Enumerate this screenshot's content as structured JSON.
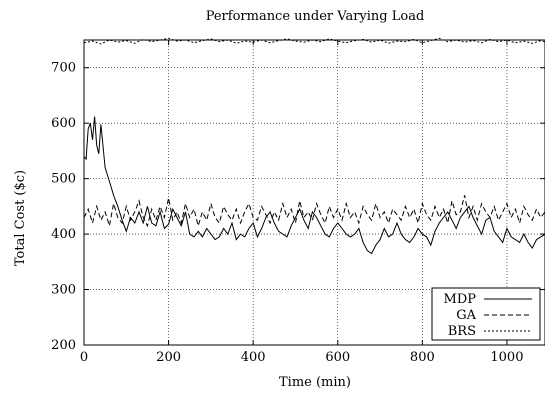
{
  "chart_data": {
    "type": "line",
    "title": "Performance under Varying Load",
    "xlabel": "Time (min)",
    "ylabel": "Total Cost ($c)",
    "xlim": [
      0,
      1090
    ],
    "ylim": [
      200,
      750
    ],
    "xticks": [
      0,
      200,
      400,
      600,
      800,
      1000
    ],
    "yticks": [
      200,
      300,
      400,
      500,
      600,
      700
    ],
    "grid": true,
    "legend_position": "bottom-right",
    "series": [
      {
        "name": "MDP",
        "style": "solid",
        "x": [
          0,
          5,
          10,
          15,
          20,
          25,
          30,
          35,
          40,
          50,
          60,
          70,
          80,
          90,
          100,
          110,
          120,
          130,
          140,
          150,
          160,
          170,
          180,
          190,
          200,
          210,
          220,
          230,
          240,
          250,
          260,
          270,
          280,
          290,
          300,
          310,
          320,
          330,
          340,
          350,
          360,
          370,
          380,
          390,
          400,
          410,
          420,
          430,
          440,
          450,
          460,
          470,
          480,
          490,
          500,
          510,
          520,
          530,
          540,
          550,
          560,
          570,
          580,
          590,
          600,
          610,
          620,
          630,
          640,
          650,
          660,
          670,
          680,
          690,
          700,
          710,
          720,
          730,
          740,
          750,
          760,
          770,
          780,
          790,
          800,
          810,
          820,
          830,
          840,
          850,
          860,
          870,
          880,
          890,
          900,
          910,
          920,
          930,
          940,
          950,
          960,
          970,
          980,
          990,
          1000,
          1010,
          1020,
          1030,
          1040,
          1050,
          1060,
          1070,
          1080,
          1090
        ],
        "y": [
          540,
          535,
          590,
          600,
          570,
          612,
          560,
          545,
          598,
          520,
          495,
          470,
          450,
          425,
          405,
          430,
          420,
          440,
          420,
          450,
          420,
          415,
          440,
          410,
          418,
          445,
          430,
          415,
          440,
          400,
          395,
          405,
          395,
          410,
          400,
          390,
          395,
          410,
          400,
          420,
          390,
          400,
          395,
          410,
          420,
          395,
          410,
          430,
          440,
          420,
          405,
          400,
          395,
          415,
          430,
          445,
          425,
          410,
          440,
          430,
          415,
          400,
          395,
          410,
          420,
          410,
          400,
          395,
          400,
          410,
          385,
          370,
          365,
          380,
          390,
          410,
          395,
          400,
          420,
          400,
          390,
          385,
          395,
          410,
          400,
          395,
          380,
          405,
          420,
          430,
          440,
          425,
          410,
          430,
          440,
          450,
          430,
          415,
          400,
          425,
          430,
          405,
          395,
          385,
          410,
          395,
          390,
          385,
          400,
          385,
          375,
          390,
          395,
          400
        ]
      },
      {
        "name": "GA",
        "style": "dashed",
        "x": [
          0,
          10,
          20,
          30,
          40,
          50,
          60,
          70,
          80,
          90,
          100,
          110,
          120,
          130,
          140,
          150,
          160,
          170,
          180,
          190,
          200,
          210,
          220,
          230,
          240,
          250,
          260,
          270,
          280,
          290,
          300,
          310,
          320,
          330,
          340,
          350,
          360,
          370,
          380,
          390,
          400,
          410,
          420,
          430,
          440,
          450,
          460,
          470,
          480,
          490,
          500,
          510,
          520,
          530,
          540,
          550,
          560,
          570,
          580,
          590,
          600,
          610,
          620,
          630,
          640,
          650,
          660,
          670,
          680,
          690,
          700,
          710,
          720,
          730,
          740,
          750,
          760,
          770,
          780,
          790,
          800,
          810,
          820,
          830,
          840,
          850,
          860,
          870,
          880,
          890,
          900,
          910,
          920,
          930,
          940,
          950,
          960,
          970,
          980,
          990,
          1000,
          1010,
          1020,
          1030,
          1040,
          1050,
          1060,
          1070,
          1080,
          1090
        ],
        "y": [
          430,
          445,
          420,
          450,
          425,
          440,
          415,
          455,
          430,
          420,
          450,
          425,
          440,
          460,
          430,
          415,
          445,
          425,
          450,
          430,
          465,
          425,
          440,
          420,
          455,
          430,
          445,
          415,
          440,
          425,
          455,
          430,
          420,
          450,
          435,
          425,
          445,
          420,
          440,
          455,
          430,
          425,
          450,
          435,
          420,
          440,
          425,
          455,
          430,
          445,
          420,
          460,
          430,
          440,
          425,
          455,
          435,
          420,
          450,
          430,
          445,
          425,
          455,
          430,
          440,
          420,
          450,
          435,
          425,
          455,
          430,
          440,
          420,
          445,
          435,
          425,
          450,
          430,
          445,
          420,
          455,
          435,
          425,
          450,
          430,
          445,
          420,
          460,
          435,
          440,
          470,
          430,
          450,
          425,
          455,
          440,
          430,
          450,
          425,
          440,
          455,
          430,
          445,
          420,
          450,
          435,
          425,
          445,
          430,
          440
        ]
      },
      {
        "name": "BRS",
        "style": "dotted",
        "x": [
          0,
          20,
          40,
          60,
          80,
          100,
          120,
          140,
          160,
          180,
          200,
          220,
          240,
          260,
          280,
          300,
          320,
          340,
          360,
          380,
          400,
          420,
          440,
          460,
          480,
          500,
          520,
          540,
          560,
          580,
          600,
          620,
          640,
          660,
          680,
          700,
          720,
          740,
          760,
          780,
          800,
          820,
          840,
          860,
          880,
          900,
          920,
          940,
          960,
          980,
          1000,
          1020,
          1040,
          1060,
          1080,
          1090
        ],
        "y": [
          745,
          748,
          743,
          750,
          746,
          749,
          744,
          751,
          747,
          750,
          753,
          748,
          750,
          745,
          749,
          752,
          747,
          750,
          744,
          748,
          746,
          750,
          745,
          749,
          752,
          748,
          746,
          750,
          747,
          752,
          748,
          745,
          749,
          751,
          746,
          750,
          744,
          748,
          747,
          751,
          745,
          749,
          753,
          747,
          750,
          746,
          749,
          745,
          751,
          747,
          750,
          745,
          748,
          744,
          749,
          747
        ]
      }
    ]
  }
}
